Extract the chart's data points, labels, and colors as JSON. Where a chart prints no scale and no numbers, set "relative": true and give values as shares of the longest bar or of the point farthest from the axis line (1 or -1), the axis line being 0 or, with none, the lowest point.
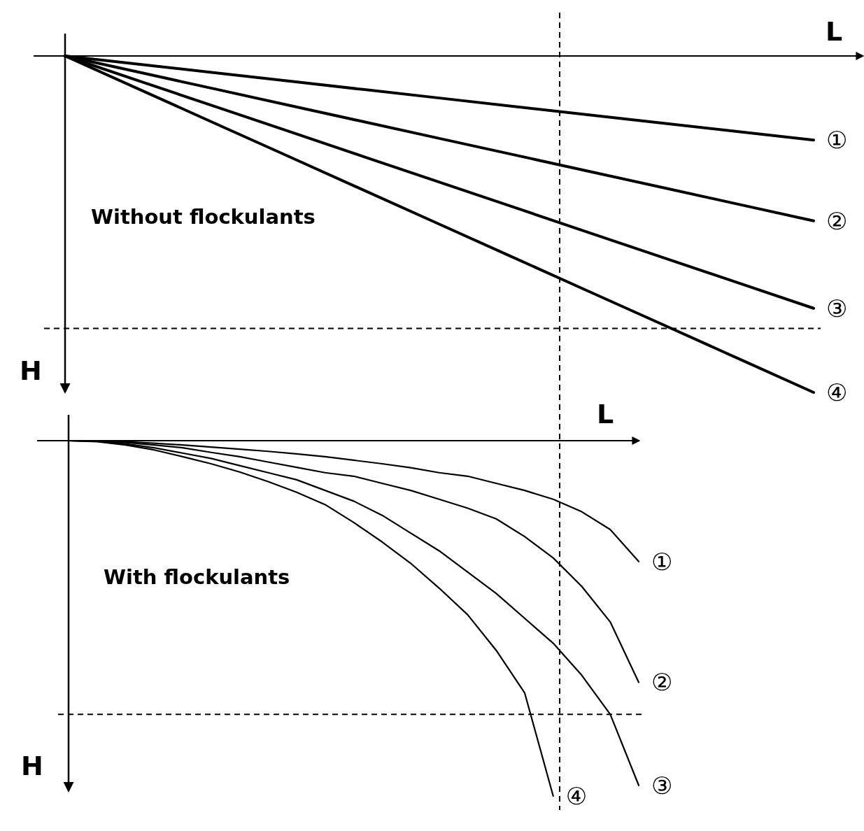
{
  "chart_data": [
    {
      "type": "line",
      "relative": true,
      "xlabel": "L",
      "ylabel": "H",
      "annotations": [
        "Without flockulants"
      ],
      "categories": [
        null,
        null,
        null,
        null,
        null,
        null,
        null,
        null,
        null,
        null,
        null
      ],
      "ref_lines": [
        {
          "axis": "y",
          "value": -0.81,
          "line_style": "dashed"
        }
      ],
      "series": [
        {
          "name": "①",
          "color": "#000000",
          "values": [
            0,
            -0.025,
            -0.05,
            -0.075,
            -0.1,
            -0.125,
            -0.15,
            -0.175,
            -0.2,
            -0.225,
            -0.25
          ]
        },
        {
          "name": "②",
          "color": "#000000",
          "values": [
            0,
            -0.049,
            -0.098,
            -0.147,
            -0.196,
            -0.245,
            -0.294,
            -0.343,
            -0.392,
            -0.441,
            -0.49
          ]
        },
        {
          "name": "③",
          "color": "#000000",
          "values": [
            0,
            -0.075,
            -0.15,
            -0.225,
            -0.3,
            -0.375,
            -0.45,
            -0.525,
            -0.6,
            -0.675,
            -0.75
          ]
        },
        {
          "name": "④",
          "color": "#000000",
          "values": [
            0,
            -0.1,
            -0.2,
            -0.3,
            -0.4,
            -0.5,
            -0.6,
            -0.7,
            -0.8,
            -0.9,
            -1
          ]
        }
      ]
    },
    {
      "type": "line",
      "relative": true,
      "xlabel": "L",
      "ylabel": "H",
      "annotations": [
        "With flockulants"
      ],
      "categories": [
        null,
        null,
        null,
        null,
        null,
        null,
        null,
        null,
        null,
        null,
        null,
        null,
        null,
        null,
        null,
        null,
        null,
        null,
        null,
        null,
        null
      ],
      "ref_lines": [
        {
          "axis": "y",
          "value": -0.77,
          "line_style": "dashed"
        }
      ],
      "series": [
        {
          "name": "①",
          "color": "#000000",
          "values": [
            0,
            -0.001,
            -0.003,
            -0.007,
            -0.012,
            -0.018,
            -0.024,
            -0.03,
            -0.037,
            -0.045,
            -0.055,
            -0.065,
            -0.076,
            -0.09,
            -0.1,
            -0.12,
            -0.14,
            -0.165,
            -0.2,
            -0.25,
            -0.34
          ]
        },
        {
          "name": "②",
          "color": "#000000",
          "values": [
            0,
            -0.001,
            -0.005,
            -0.012,
            -0.02,
            -0.033,
            -0.045,
            -0.06,
            -0.075,
            -0.09,
            -0.1,
            -0.12,
            -0.14,
            -0.165,
            -0.19,
            -0.22,
            -0.27,
            -0.33,
            -0.41,
            -0.51,
            -0.68
          ]
        },
        {
          "name": "③",
          "color": "#000000",
          "values": [
            0,
            -0.002,
            -0.009,
            -0.02,
            -0.035,
            -0.05,
            -0.07,
            -0.09,
            -0.11,
            -0.14,
            -0.17,
            -0.21,
            -0.26,
            -0.31,
            -0.37,
            -0.43,
            -0.5,
            -0.57,
            -0.66,
            -0.77,
            -0.97
          ]
        },
        {
          "name": "④",
          "color": "#000000",
          "values": [
            0,
            -0.003,
            -0.012,
            -0.026,
            -0.045,
            -0.065,
            -0.088,
            -0.115,
            -0.145,
            -0.18,
            -0.23,
            -0.285,
            -0.345,
            -0.415,
            -0.49,
            -0.59,
            -0.71,
            -1,
            null,
            null,
            null
          ]
        }
      ]
    }
  ]
}
